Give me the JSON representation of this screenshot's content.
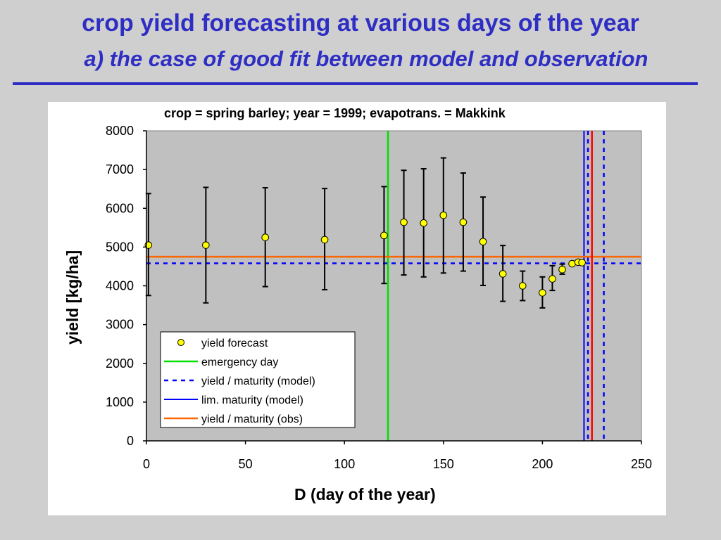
{
  "slide": {
    "title": "crop yield forecasting at various days of the year",
    "subtitle": "a) the case of good fit between model and observation"
  },
  "colors": {
    "slide_background": "#cfcfcf",
    "title_text": "#2e2ec4",
    "plot_area": "#c0c0c0",
    "marker_fill": "#ffff00",
    "error_bar": "#000000",
    "emergency_day": "#00e000",
    "model_line": "#0000ff",
    "obs_line": "#ff6600",
    "obs_day": "#ff0000"
  },
  "chart_data": {
    "type": "scatter",
    "title": "crop = spring barley; year = 1999; evapotrans. = Makkink",
    "xlabel": "D  (day of the year)",
    "ylabel": "yield  [kg/ha]",
    "xlim": [
      0,
      250
    ],
    "ylim": [
      0,
      8000
    ],
    "xticks": [
      0,
      50,
      100,
      150,
      200,
      250
    ],
    "yticks": [
      0,
      1000,
      2000,
      3000,
      4000,
      5000,
      6000,
      7000,
      8000
    ],
    "grid": false,
    "legend_position": "bottom-left",
    "series": [
      {
        "name": "yield forecast",
        "points": [
          {
            "x": 1,
            "y": 5050,
            "ylow": 3750,
            "yhigh": 6380
          },
          {
            "x": 30,
            "y": 5050,
            "ylow": 3560,
            "yhigh": 6540
          },
          {
            "x": 60,
            "y": 5250,
            "ylow": 3980,
            "yhigh": 6530
          },
          {
            "x": 90,
            "y": 5190,
            "ylow": 3900,
            "yhigh": 6510
          },
          {
            "x": 120,
            "y": 5300,
            "ylow": 4060,
            "yhigh": 6560
          },
          {
            "x": 130,
            "y": 5640,
            "ylow": 4280,
            "yhigh": 6980
          },
          {
            "x": 140,
            "y": 5620,
            "ylow": 4230,
            "yhigh": 7020
          },
          {
            "x": 150,
            "y": 5820,
            "ylow": 4330,
            "yhigh": 7300
          },
          {
            "x": 160,
            "y": 5640,
            "ylow": 4380,
            "yhigh": 6910
          },
          {
            "x": 170,
            "y": 5140,
            "ylow": 4010,
            "yhigh": 6290
          },
          {
            "x": 180,
            "y": 4310,
            "ylow": 3600,
            "yhigh": 5040
          },
          {
            "x": 190,
            "y": 4000,
            "ylow": 3620,
            "yhigh": 4380
          },
          {
            "x": 200,
            "y": 3820,
            "ylow": 3430,
            "yhigh": 4230
          },
          {
            "x": 205,
            "y": 4180,
            "ylow": 3880,
            "yhigh": 4520
          },
          {
            "x": 210,
            "y": 4420,
            "ylow": 4300,
            "yhigh": 4560
          },
          {
            "x": 215,
            "y": 4570,
            "ylow": 4520,
            "yhigh": 4620
          },
          {
            "x": 218,
            "y": 4610,
            "ylow": 4590,
            "yhigh": 4630
          },
          {
            "x": 220,
            "y": 4600,
            "ylow": 4590,
            "yhigh": 4610
          }
        ]
      },
      {
        "name": "emergency day",
        "orientation": "vertical",
        "x": 122,
        "style": "solid"
      },
      {
        "name": "yield / maturity (model)",
        "orientation": "horizontal",
        "y": 4580,
        "style": "dashed"
      },
      {
        "name": "yield / maturity (model)",
        "orientation": "vertical",
        "x": 223,
        "style": "dashed"
      },
      {
        "name": "yield / maturity (model)",
        "orientation": "vertical",
        "x": 231,
        "style": "dashed"
      },
      {
        "name": "lim. maturity (model)",
        "orientation": "vertical",
        "x": 221,
        "style": "solid"
      },
      {
        "name": "yield / maturity (obs)",
        "orientation": "horizontal",
        "y": 4750,
        "style": "solid"
      },
      {
        "name": "yield / maturity (obs)",
        "orientation": "vertical",
        "x": 225,
        "style": "solid"
      }
    ],
    "legend": [
      {
        "label": "yield forecast",
        "symbol": "marker"
      },
      {
        "label": "emergency day",
        "symbol": "solid-green"
      },
      {
        "label": "yield / maturity (model)",
        "symbol": "dashed-blue"
      },
      {
        "label": "lim. maturity (model)",
        "symbol": "solid-blue"
      },
      {
        "label": "yield / maturity (obs)",
        "symbol": "solid-orange"
      }
    ]
  }
}
